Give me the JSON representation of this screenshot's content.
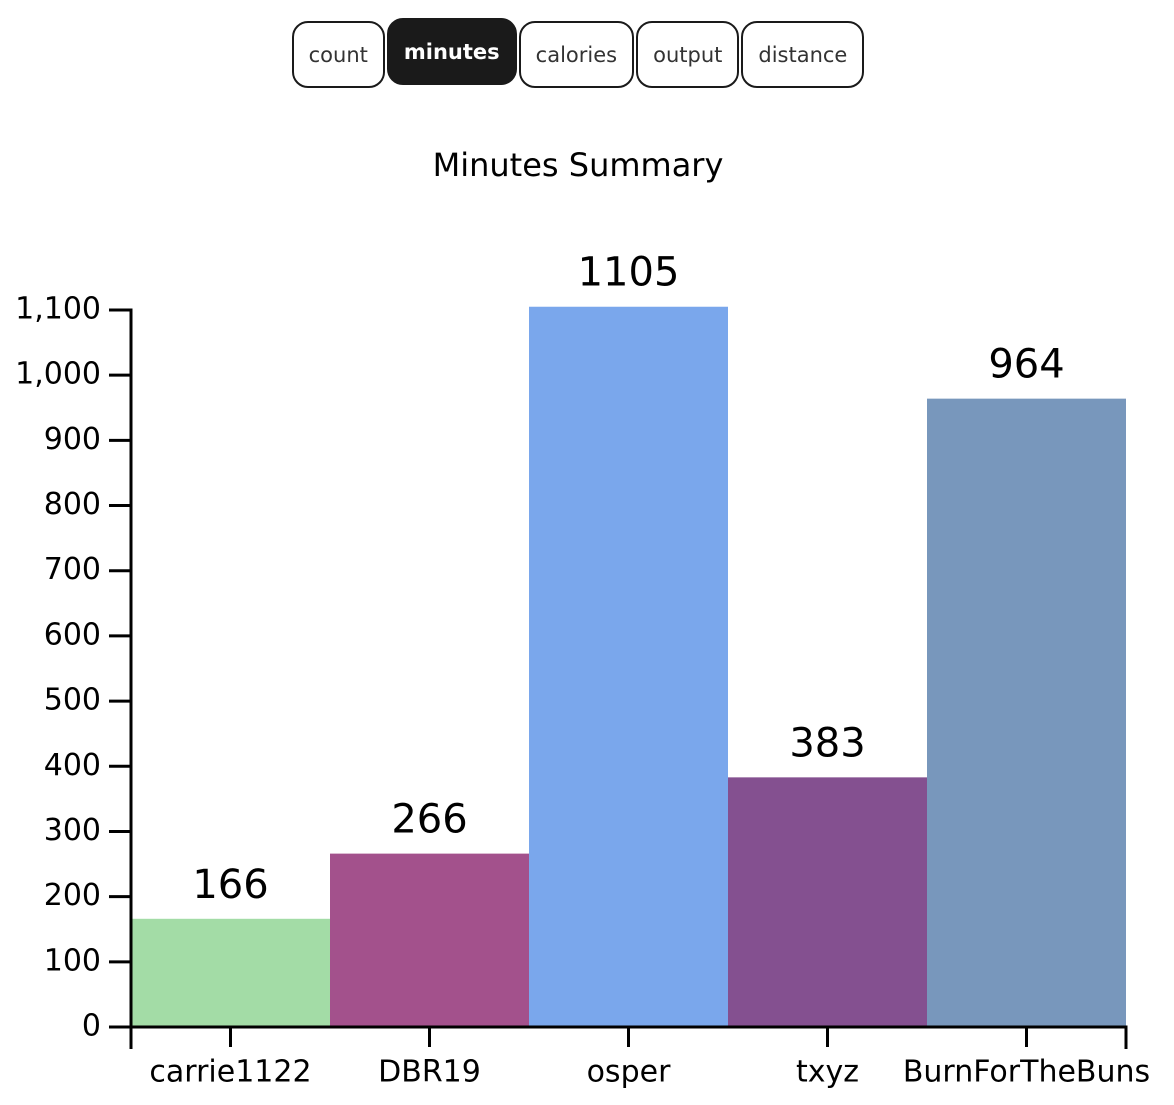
{
  "buttons": [
    "count",
    "minutes",
    "calories",
    "output",
    "distance"
  ],
  "active_button": 1,
  "chart_data": {
    "type": "bar",
    "title": "Minutes Summary",
    "categories": [
      "carrie1122",
      "DBR19",
      "osper",
      "txyz",
      "BurnForTheBuns"
    ],
    "values": [
      166,
      266,
      1105,
      383,
      964
    ],
    "colors": [
      "#a3dca6",
      "#a3518c",
      "#7aa7ec",
      "#845090",
      "#7897bc"
    ],
    "ylim": [
      0,
      1100
    ],
    "yticks": [
      0,
      100,
      200,
      300,
      400,
      500,
      600,
      700,
      800,
      900,
      {
        "value": 1000,
        "label": "1,000"
      },
      {
        "value": 1100,
        "label": "1,100"
      }
    ],
    "grid": false
  }
}
